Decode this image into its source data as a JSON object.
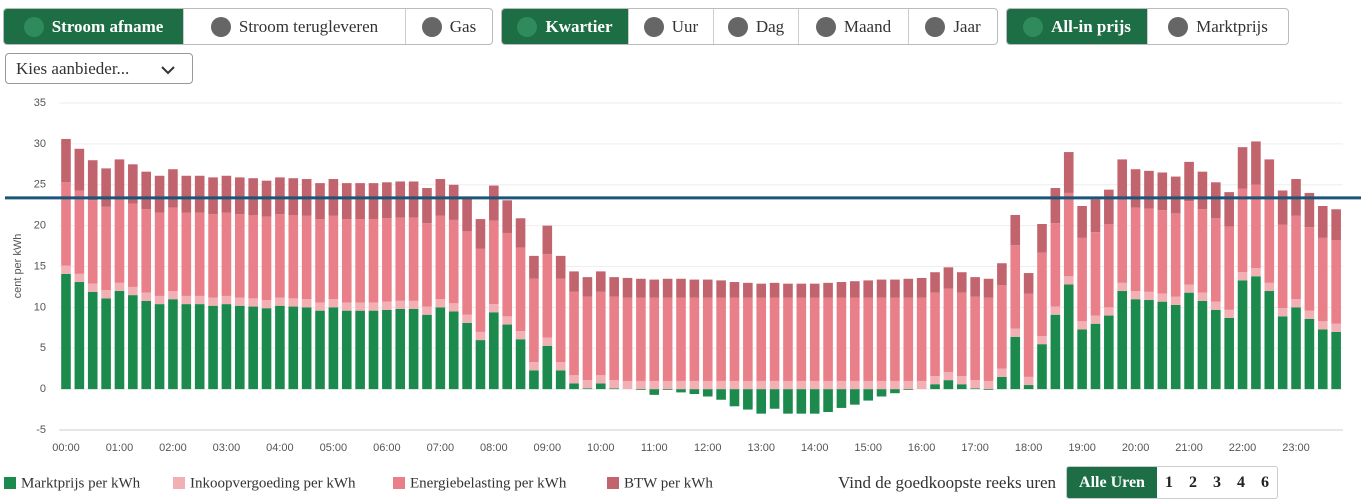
{
  "toolbar": {
    "groups": [
      {
        "buttons": [
          {
            "label": "Stroom afname",
            "active": true
          },
          {
            "label": "Stroom terugleveren",
            "active": false
          },
          {
            "label": "Gas",
            "active": false
          }
        ]
      },
      {
        "buttons": [
          {
            "label": "Kwartier",
            "active": true
          },
          {
            "label": "Uur",
            "active": false
          },
          {
            "label": "Dag",
            "active": false
          },
          {
            "label": "Maand",
            "active": false
          },
          {
            "label": "Jaar",
            "active": false
          }
        ]
      },
      {
        "buttons": [
          {
            "label": "All-in prijs",
            "active": true
          },
          {
            "label": "Marktprijs",
            "active": false
          }
        ]
      }
    ]
  },
  "provider_select": "Kies aanbieder...",
  "chart_data": {
    "type": "bar",
    "stacked": true,
    "y_label": "cent per kWh",
    "categories": [
      "00:00",
      null,
      null,
      null,
      "01:00",
      null,
      null,
      null,
      "02:00",
      null,
      null,
      null,
      "03:00",
      null,
      null,
      null,
      "04:00",
      null,
      null,
      null,
      "05:00",
      null,
      null,
      null,
      "06:00",
      null,
      null,
      null,
      "07:00",
      null,
      null,
      null,
      "08:00",
      null,
      null,
      null,
      "09:00",
      null,
      null,
      null,
      "10:00",
      null,
      null,
      null,
      "11:00",
      null,
      null,
      null,
      "12:00",
      null,
      null,
      null,
      "13:00",
      null,
      null,
      null,
      "14:00",
      null,
      null,
      null,
      "15:00",
      null,
      null,
      null,
      "16:00",
      null,
      null,
      null,
      "17:00",
      null,
      null,
      null,
      "18:00",
      null,
      null,
      null,
      "19:00",
      null,
      null,
      null,
      "20:00",
      null,
      null,
      null,
      "21:00",
      null,
      null,
      null,
      "22:00",
      null,
      null,
      null,
      "23:00",
      null,
      null,
      null
    ],
    "series": [
      {
        "name": "Marktprijs per kWh",
        "color": "#1b8a4c",
        "values": [
          14.1,
          13.1,
          11.9,
          11.1,
          12.0,
          11.5,
          10.8,
          10.4,
          11.0,
          10.4,
          10.4,
          10.2,
          10.4,
          10.2,
          10.1,
          9.9,
          10.2,
          10.1,
          10.0,
          9.6,
          10.0,
          9.6,
          9.6,
          9.6,
          9.7,
          9.8,
          9.8,
          9.1,
          10.0,
          9.5,
          8.1,
          6.0,
          9.4,
          7.9,
          6.1,
          2.3,
          5.3,
          2.3,
          0.7,
          0.1,
          0.7,
          0.1,
          0,
          -0.1,
          -0.7,
          -0.1,
          -0.4,
          -0.6,
          -0.9,
          -1.3,
          -2.1,
          -2.5,
          -3.0,
          -2.4,
          -3.0,
          -3.0,
          -3.0,
          -2.8,
          -2.3,
          -1.9,
          -1.4,
          -0.9,
          -0.5,
          -0.1,
          0,
          0.6,
          1.1,
          0.6,
          0.1,
          -0.1,
          1.5,
          6.4,
          0.5,
          5.5,
          9.1,
          12.8,
          7.3,
          8.0,
          9.0,
          12.0,
          11.0,
          10.9,
          10.7,
          10.3,
          11.8,
          10.8,
          9.7,
          8.7,
          13.3,
          13.8,
          12.0,
          8.9,
          10.0,
          8.6,
          7.3,
          7.0
        ]
      },
      {
        "name": "Inkoopvergoeding per kWh",
        "color": "#f2b0b5",
        "values": [
          1,
          1,
          1,
          1,
          1,
          1,
          1,
          1,
          1,
          1,
          1,
          1,
          1,
          1,
          1,
          1,
          1,
          1,
          1,
          1,
          1,
          1,
          1,
          1,
          1,
          1,
          1,
          1,
          1,
          1,
          1,
          1,
          1,
          1,
          1,
          1,
          1,
          1,
          1,
          1,
          1,
          1,
          1,
          1,
          1,
          1,
          1,
          1,
          1,
          1,
          1,
          1,
          1,
          1,
          1,
          1,
          1,
          1,
          1,
          1,
          1,
          1,
          1,
          1,
          1,
          1,
          1,
          1,
          1,
          1,
          1,
          1,
          1,
          1,
          1,
          1,
          1,
          1,
          1,
          1,
          1,
          1,
          1,
          1,
          1,
          1,
          1,
          1,
          1,
          1,
          1,
          1,
          1,
          1,
          1,
          1
        ]
      },
      {
        "name": "Energiebelasting per kWh",
        "color": "#e97f88",
        "values": [
          10.2,
          10.2,
          10.2,
          10.2,
          10.2,
          10.2,
          10.2,
          10.2,
          10.2,
          10.2,
          10.2,
          10.2,
          10.2,
          10.2,
          10.2,
          10.2,
          10.2,
          10.2,
          10.2,
          10.2,
          10.2,
          10.2,
          10.2,
          10.2,
          10.2,
          10.2,
          10.2,
          10.2,
          10.2,
          10.2,
          10.2,
          10.2,
          10.2,
          10.2,
          10.2,
          10.2,
          10.2,
          10.2,
          10.2,
          10.2,
          10.2,
          10.2,
          10.2,
          10.2,
          10.2,
          10.2,
          10.2,
          10.2,
          10.2,
          10.2,
          10.2,
          10.2,
          10.2,
          10.2,
          10.2,
          10.2,
          10.2,
          10.2,
          10.2,
          10.2,
          10.2,
          10.2,
          10.2,
          10.2,
          10.2,
          10.2,
          10.2,
          10.2,
          10.2,
          10.2,
          10.2,
          10.2,
          10.2,
          10.2,
          10.2,
          10.2,
          10.2,
          10.2,
          10.2,
          10.2,
          10.2,
          10.2,
          10.2,
          10.2,
          10.2,
          10.2,
          10.2,
          10.2,
          10.2,
          10.2,
          10.2,
          10.2,
          10.2,
          10.2,
          10.2,
          10.2
        ]
      },
      {
        "name": "BTW per kWh",
        "color": "#c2646d",
        "values": [
          5.3,
          5.1,
          4.9,
          4.7,
          4.9,
          4.8,
          4.6,
          4.5,
          4.7,
          4.5,
          4.5,
          4.5,
          4.5,
          4.5,
          4.5,
          4.4,
          4.5,
          4.5,
          4.5,
          4.4,
          4.5,
          4.4,
          4.4,
          4.4,
          4.4,
          4.4,
          4.4,
          4.3,
          4.5,
          4.3,
          4.1,
          3.6,
          4.3,
          4.0,
          3.6,
          2.8,
          3.5,
          2.8,
          2.5,
          2.4,
          2.5,
          2.4,
          2.4,
          2.3,
          2.2,
          2.3,
          2.3,
          2.2,
          2.2,
          2.1,
          1.9,
          1.8,
          1.7,
          1.8,
          1.7,
          1.7,
          1.7,
          1.8,
          1.9,
          2.0,
          2.1,
          2.2,
          2.2,
          2.3,
          2.4,
          2.5,
          2.6,
          2.5,
          2.4,
          2.3,
          2.7,
          3.7,
          2.5,
          3.5,
          4.3,
          5.0,
          3.9,
          4.0,
          4.2,
          4.9,
          4.7,
          4.6,
          4.6,
          4.5,
          4.8,
          4.6,
          4.4,
          4.2,
          5.1,
          5.3,
          4.9,
          4.2,
          4.5,
          4.2,
          3.9,
          3.8
        ]
      }
    ],
    "ylim": [
      -5,
      35
    ],
    "yticks": [
      -5,
      0,
      5,
      10,
      15,
      20,
      25,
      30,
      35
    ],
    "grid": true,
    "reference_line": {
      "value": 23.4,
      "color": "#1b5577"
    }
  },
  "cheapest": {
    "label": "Vind de goedkoopste reeks uren",
    "options": [
      {
        "label": "Alle Uren",
        "active": true
      },
      {
        "label": "1",
        "active": false
      },
      {
        "label": "2",
        "active": false
      },
      {
        "label": "3",
        "active": false
      },
      {
        "label": "4",
        "active": false
      },
      {
        "label": "6",
        "active": false
      }
    ]
  }
}
